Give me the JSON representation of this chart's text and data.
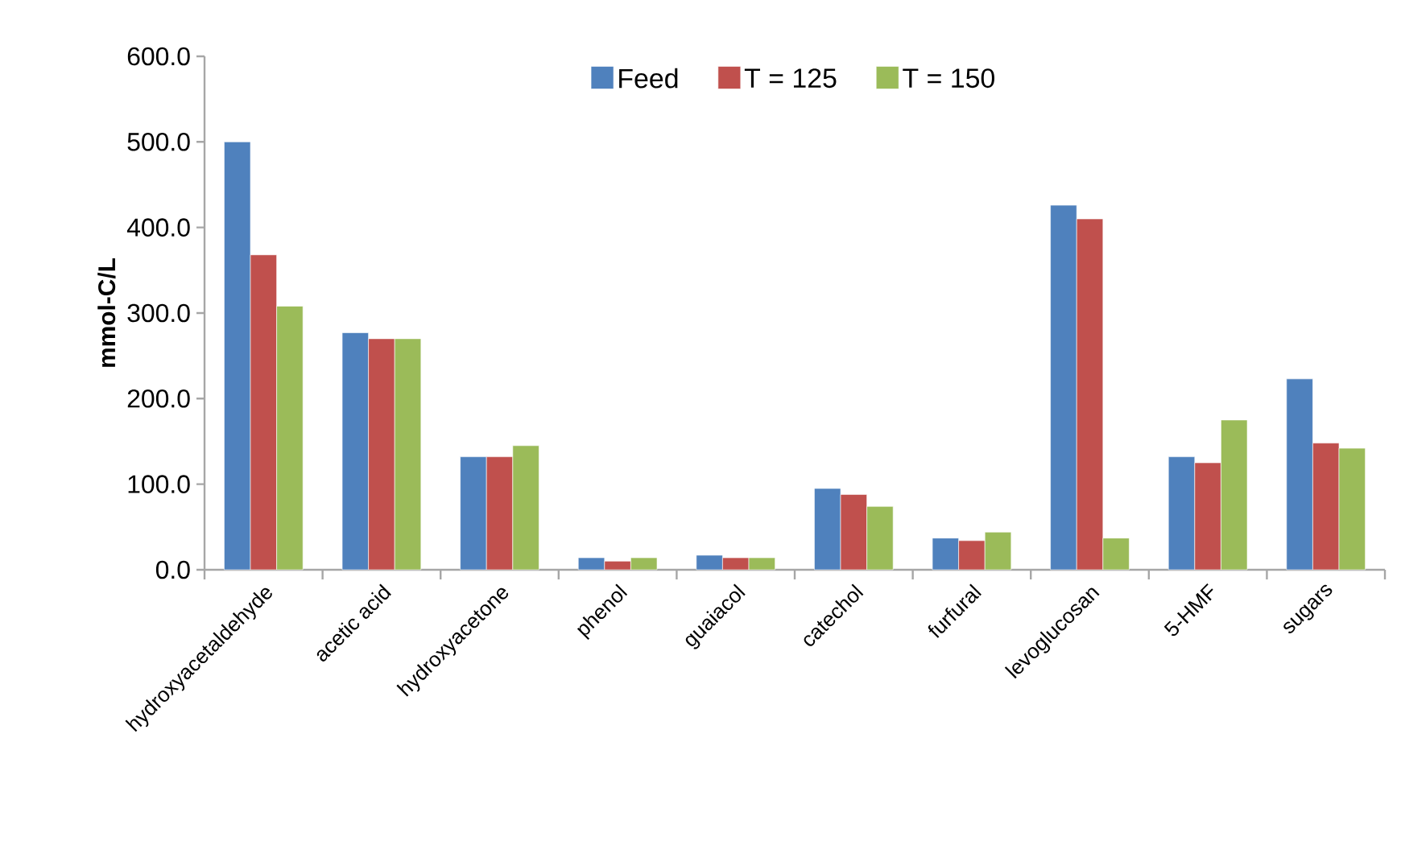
{
  "chart_data": {
    "type": "bar",
    "ylabel": "mmol-C/L",
    "categories": [
      "hydroxyacetaldehyde",
      "acetic acid",
      "hydroxyacetone",
      "phenol",
      "guaiacol",
      "catechol",
      "furfural",
      "levoglucosan",
      "5-HMF",
      "sugars"
    ],
    "series": [
      {
        "name": "Feed",
        "color": "#4f81bd",
        "values": [
          500,
          277,
          132,
          14,
          17,
          95,
          37,
          426,
          132,
          223
        ]
      },
      {
        "name": "T = 125",
        "color": "#c0504d",
        "values": [
          368,
          270,
          132,
          10,
          14,
          88,
          34,
          410,
          125,
          148
        ]
      },
      {
        "name": "T = 150",
        "color": "#9bbb59",
        "values": [
          308,
          270,
          145,
          14,
          14,
          74,
          44,
          37,
          175,
          142
        ]
      }
    ],
    "ylim": [
      0,
      600
    ],
    "yticks": [
      {
        "value": 0,
        "label": "0.0"
      },
      {
        "value": 100,
        "label": "100.0"
      },
      {
        "value": 200,
        "label": "200.0"
      },
      {
        "value": 300,
        "label": "300.0"
      },
      {
        "value": 400,
        "label": "400.0"
      },
      {
        "value": 500,
        "label": "500.0"
      },
      {
        "value": 600,
        "label": "600.0"
      }
    ],
    "grid": false,
    "legend": "top"
  }
}
